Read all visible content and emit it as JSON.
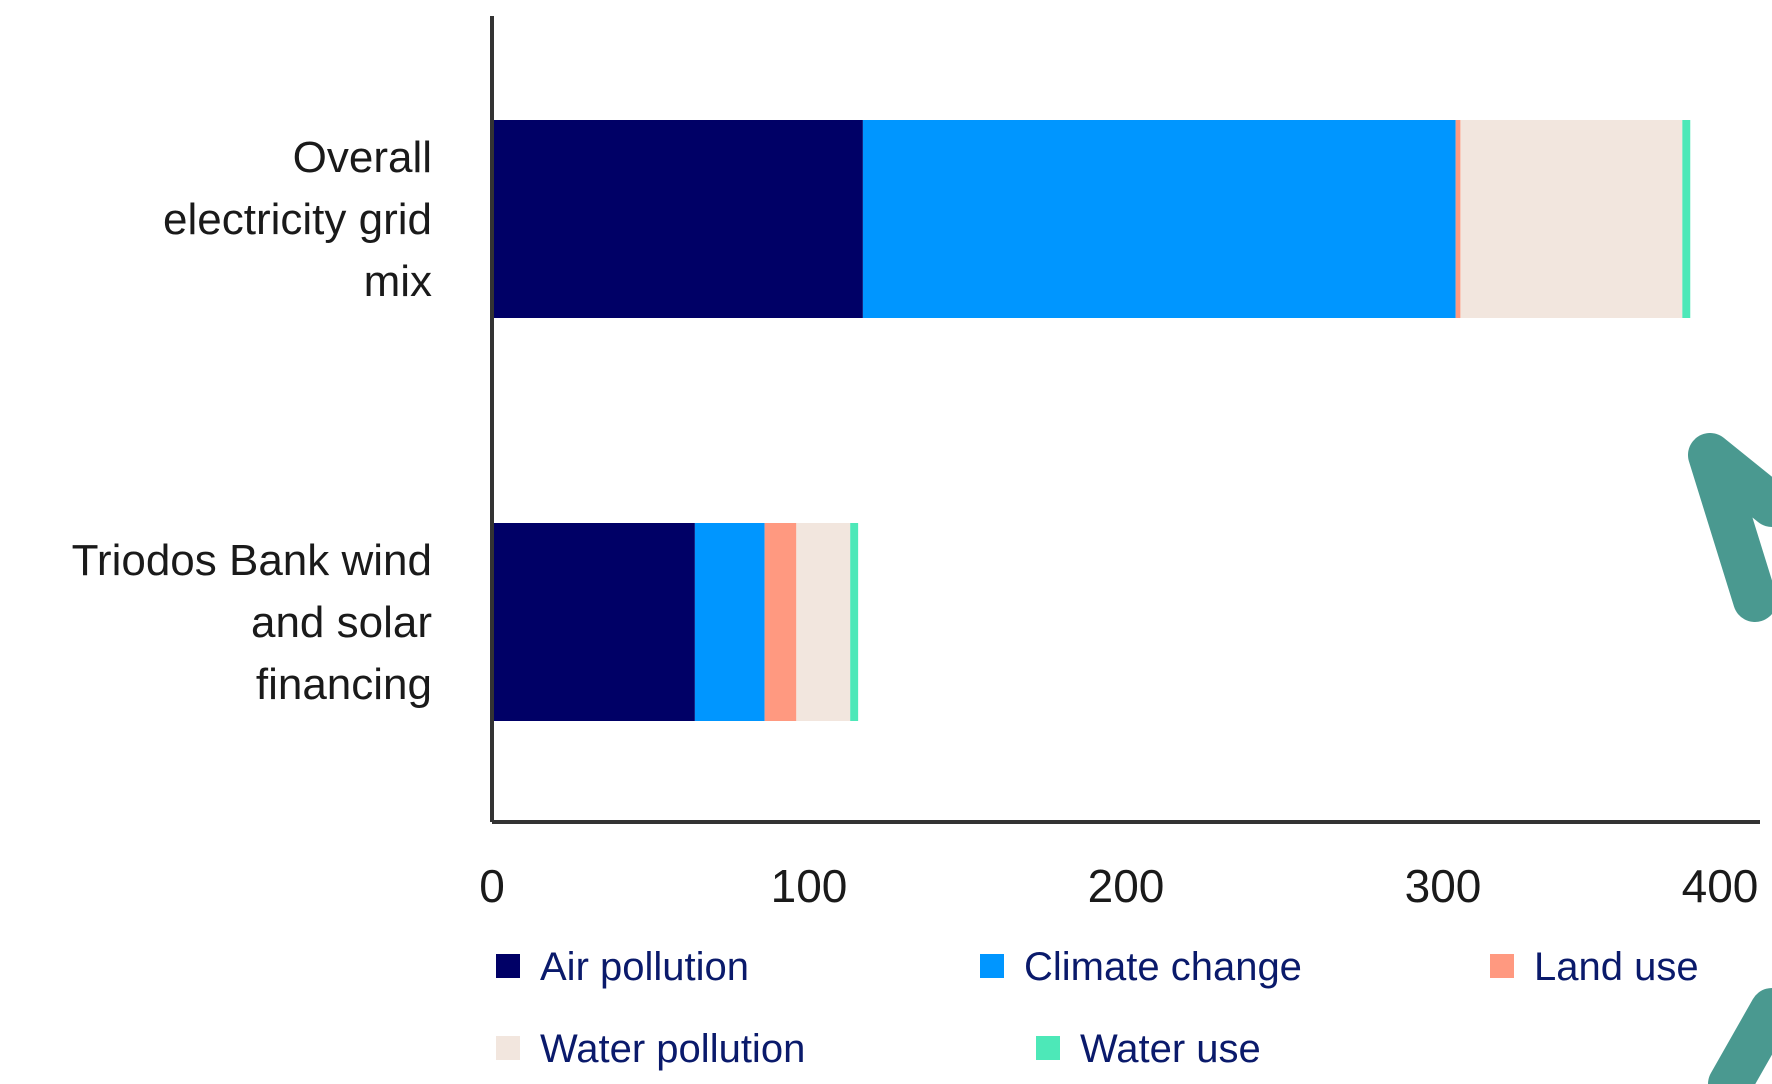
{
  "chart_data": {
    "type": "bar",
    "orientation": "horizontal",
    "stacked": true,
    "categories": [
      "Overall electricity grid mix",
      "Triodos Bank wind and solar financing"
    ],
    "category_lines": [
      [
        "Overall",
        "electricity grid",
        "mix"
      ],
      [
        "Triodos Bank wind",
        "and solar",
        "financing"
      ]
    ],
    "series": [
      {
        "name": "Air pollution",
        "color": "#000066",
        "values": [
          117,
          64
        ]
      },
      {
        "name": "Climate change",
        "color": "#0096FF",
        "values": [
          187,
          22
        ]
      },
      {
        "name": "Land use",
        "color": "#FF9980",
        "values": [
          1.5,
          10
        ]
      },
      {
        "name": "Water pollution",
        "color": "#F2E6DE",
        "values": [
          70,
          17
        ]
      },
      {
        "name": "Water use",
        "color": "#4DE8B8",
        "values": [
          2.5,
          2.5
        ]
      }
    ],
    "xlim": [
      0,
      400
    ],
    "xticks": [
      "0",
      "100",
      "200",
      "300",
      "400"
    ],
    "xlabel": "",
    "ylabel": "",
    "title": "",
    "grid": false,
    "legend_position": "bottom",
    "decoration_color": "#4A9990"
  }
}
